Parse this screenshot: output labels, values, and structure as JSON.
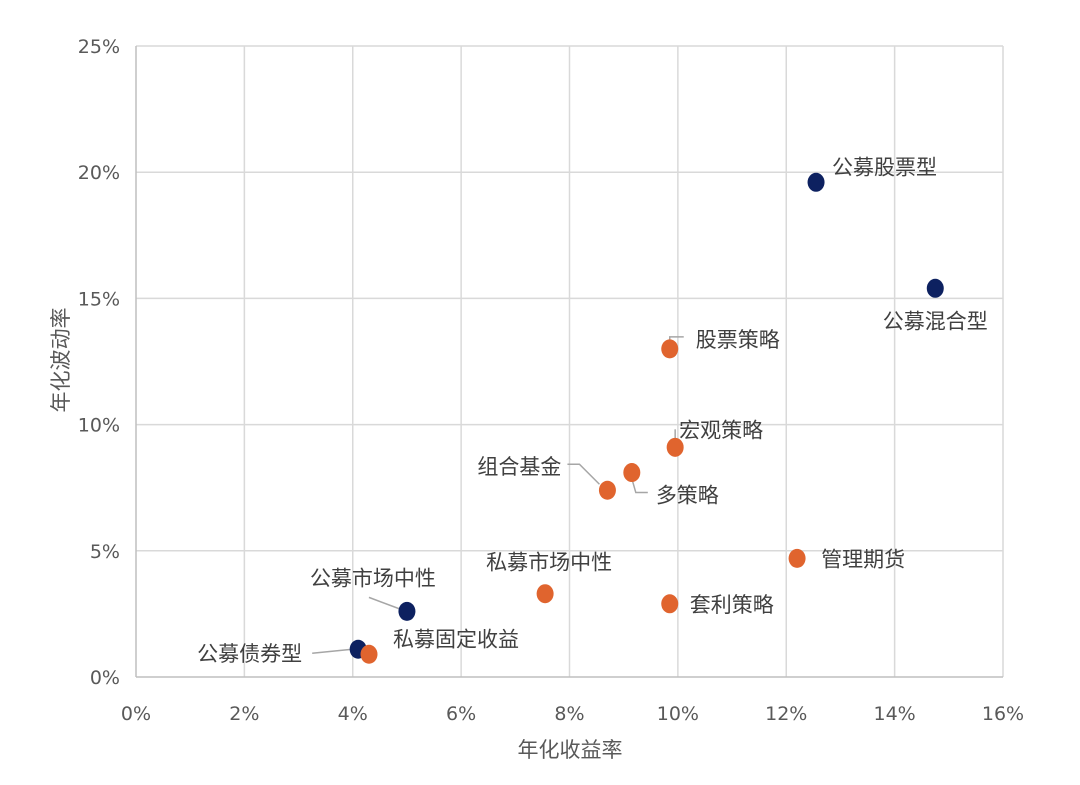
{
  "chart_data": {
    "type": "scatter",
    "title": "",
    "xlabel": "年化收益率",
    "ylabel": "年化波动率",
    "xlim": [
      0,
      16
    ],
    "ylim": [
      0,
      25
    ],
    "x_ticks": [
      "0%",
      "2%",
      "4%",
      "6%",
      "8%",
      "10%",
      "12%",
      "14%",
      "16%"
    ],
    "y_ticks": [
      "0%",
      "5%",
      "10%",
      "15%",
      "20%",
      "25%"
    ],
    "grid": true,
    "legend": "none",
    "colors": {
      "public": "#0d2160",
      "private": "#e0642e"
    },
    "series": [
      {
        "group": "public",
        "points": [
          {
            "label": "公募股票型",
            "x": 12.55,
            "y": 19.6
          },
          {
            "label": "公募混合型",
            "x": 14.75,
            "y": 15.4
          },
          {
            "label": "公募市场中性",
            "x": 5.0,
            "y": 2.6
          },
          {
            "label": "公募债券型",
            "x": 4.1,
            "y": 1.1
          }
        ]
      },
      {
        "group": "private",
        "points": [
          {
            "label": "股票策略",
            "x": 9.85,
            "y": 13.0
          },
          {
            "label": "宏观策略",
            "x": 9.95,
            "y": 9.1
          },
          {
            "label": "多策略",
            "x": 9.15,
            "y": 8.1
          },
          {
            "label": "组合基金",
            "x": 8.7,
            "y": 7.4
          },
          {
            "label": "管理期货",
            "x": 12.2,
            "y": 4.7
          },
          {
            "label": "私募市场中性",
            "x": 7.55,
            "y": 3.3
          },
          {
            "label": "套利策略",
            "x": 9.85,
            "y": 2.9
          },
          {
            "label": "私募固定收益",
            "x": 4.3,
            "y": 0.9
          }
        ]
      }
    ]
  }
}
